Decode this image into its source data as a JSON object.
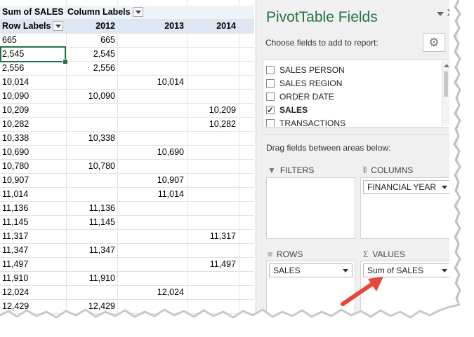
{
  "pivot_table": {
    "header": {
      "values_label": "Sum of SALES",
      "column_labels": "Column Labels",
      "row_labels": "Row Labels",
      "years": [
        "2012",
        "2013",
        "2014"
      ]
    },
    "rows": [
      {
        "label": "665",
        "y2012": "665",
        "y2013": "",
        "y2014": ""
      },
      {
        "label": "2,545",
        "y2012": "2,545",
        "y2013": "",
        "y2014": ""
      },
      {
        "label": "2,556",
        "y2012": "2,556",
        "y2013": "",
        "y2014": ""
      },
      {
        "label": "10,014",
        "y2012": "",
        "y2013": "10,014",
        "y2014": ""
      },
      {
        "label": "10,090",
        "y2012": "10,090",
        "y2013": "",
        "y2014": ""
      },
      {
        "label": "10,209",
        "y2012": "",
        "y2013": "",
        "y2014": "10,209"
      },
      {
        "label": "10,282",
        "y2012": "",
        "y2013": "",
        "y2014": "10,282"
      },
      {
        "label": "10,338",
        "y2012": "10,338",
        "y2013": "",
        "y2014": ""
      },
      {
        "label": "10,690",
        "y2012": "",
        "y2013": "10,690",
        "y2014": ""
      },
      {
        "label": "10,780",
        "y2012": "10,780",
        "y2013": "",
        "y2014": ""
      },
      {
        "label": "10,907",
        "y2012": "",
        "y2013": "10,907",
        "y2014": ""
      },
      {
        "label": "11,014",
        "y2012": "",
        "y2013": "11,014",
        "y2014": ""
      },
      {
        "label": "11,136",
        "y2012": "11,136",
        "y2013": "",
        "y2014": ""
      },
      {
        "label": "11,145",
        "y2012": "11,145",
        "y2013": "",
        "y2014": ""
      },
      {
        "label": "11,317",
        "y2012": "",
        "y2013": "",
        "y2014": "11,317"
      },
      {
        "label": "11,347",
        "y2012": "11,347",
        "y2013": "",
        "y2014": ""
      },
      {
        "label": "11,497",
        "y2012": "",
        "y2013": "",
        "y2014": "11,497"
      },
      {
        "label": "11,910",
        "y2012": "11,910",
        "y2013": "",
        "y2014": ""
      },
      {
        "label": "12,024",
        "y2012": "",
        "y2013": "12,024",
        "y2014": ""
      },
      {
        "label": "12,429",
        "y2012": "12,429",
        "y2013": "",
        "y2014": ""
      }
    ]
  },
  "pivot_fields_panel": {
    "title": "PivotTable Fields",
    "choose_text": "Choose fields to add to report:",
    "fields": [
      {
        "label": "SALES PERSON",
        "checked": false
      },
      {
        "label": "SALES REGION",
        "checked": false
      },
      {
        "label": "ORDER DATE",
        "checked": false
      },
      {
        "label": "SALES",
        "checked": true
      },
      {
        "label": "TRANSACTIONS",
        "checked": false
      }
    ],
    "drag_text": "Drag fields between areas below:",
    "areas": {
      "filters": {
        "label": "FILTERS",
        "icon": "filter-icon",
        "items": []
      },
      "columns": {
        "label": "COLUMNS",
        "icon": "columns-icon",
        "items": [
          "FINANCIAL YEAR"
        ]
      },
      "rows": {
        "label": "ROWS",
        "icon": "rows-icon",
        "items": [
          "SALES"
        ]
      },
      "values": {
        "label": "VALUES",
        "icon": "sigma-icon",
        "items": [
          "Sum of SALES"
        ]
      }
    },
    "icons": {
      "settings": "gear-icon",
      "close": "close-icon",
      "options": "chevron-down-icon"
    }
  },
  "colors": {
    "accent_green": "#217346",
    "annotation_arrow": "#e8463a",
    "header_fill": "#dde7f3"
  }
}
